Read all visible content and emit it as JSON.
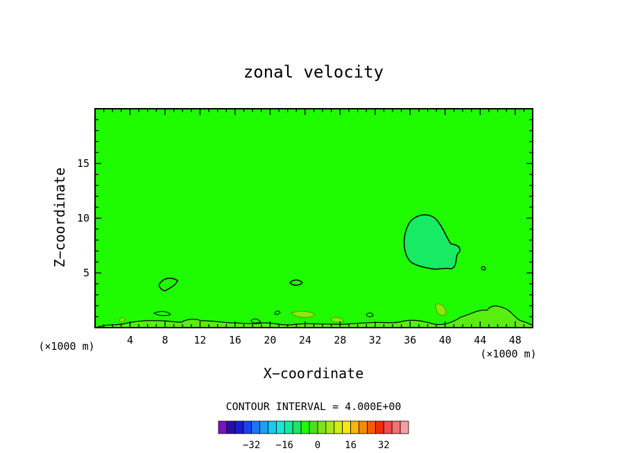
{
  "chart_data": {
    "type": "heatmap",
    "title": "zonal velocity",
    "xlabel": "X−coordinate",
    "ylabel": "Z−coordinate",
    "x_unit": "(×1000 m)",
    "z_unit": "(×1000 m)",
    "xlim": [
      0,
      50
    ],
    "ylim": [
      0,
      20
    ],
    "x_ticks": [
      4,
      8,
      12,
      16,
      20,
      24,
      28,
      32,
      36,
      40,
      44,
      48
    ],
    "y_ticks": [
      5,
      10,
      15
    ],
    "background_level": 4,
    "contour_interval_text": "CONTOUR INTERVAL = 4.000E+00",
    "contour_interval": 4,
    "features": [
      {
        "id": "large-anomaly",
        "cx": 37.9,
        "cz": 7.9,
        "rx": 2.5,
        "rz": 2.3,
        "level": 8
      },
      {
        "id": "small-anomaly-1",
        "cx": 8.6,
        "cz": 4.0,
        "rx": 1.2,
        "rz": 0.6,
        "level": 0
      },
      {
        "id": "small-anomaly-2",
        "cx": 23.0,
        "cz": 4.1,
        "rx": 0.7,
        "rz": 0.3,
        "level": 0
      },
      {
        "id": "small-anomaly-3",
        "cx": 44.7,
        "cz": 5.4,
        "rx": 0.3,
        "rz": 0.2,
        "level": 0
      }
    ],
    "colorbar": {
      "levels": [
        -36,
        -32,
        -28,
        -24,
        -20,
        -16,
        -12,
        -8,
        -4,
        0,
        4,
        8,
        12,
        16,
        20,
        24,
        28,
        32,
        36
      ],
      "colors": [
        "#7a14b8",
        "#2a0fa8",
        "#1a1ccf",
        "#1746e6",
        "#1f74f0",
        "#1aa0f5",
        "#19c9f0",
        "#18e8d8",
        "#16eba0",
        "#15e86a",
        "#1ffc00",
        "#4ce01e",
        "#7fe020",
        "#a8e819",
        "#d4ee12",
        "#f5e80e",
        "#f5b80c",
        "#f58a0a",
        "#f55a09",
        "#f52a08",
        "#f54848",
        "#f57070",
        "#f5a0a0"
      ],
      "tick_labels": [
        "−32",
        "−16",
        "0",
        "16",
        "32"
      ],
      "tick_values": [
        -32,
        -16,
        0,
        16,
        32
      ]
    }
  }
}
